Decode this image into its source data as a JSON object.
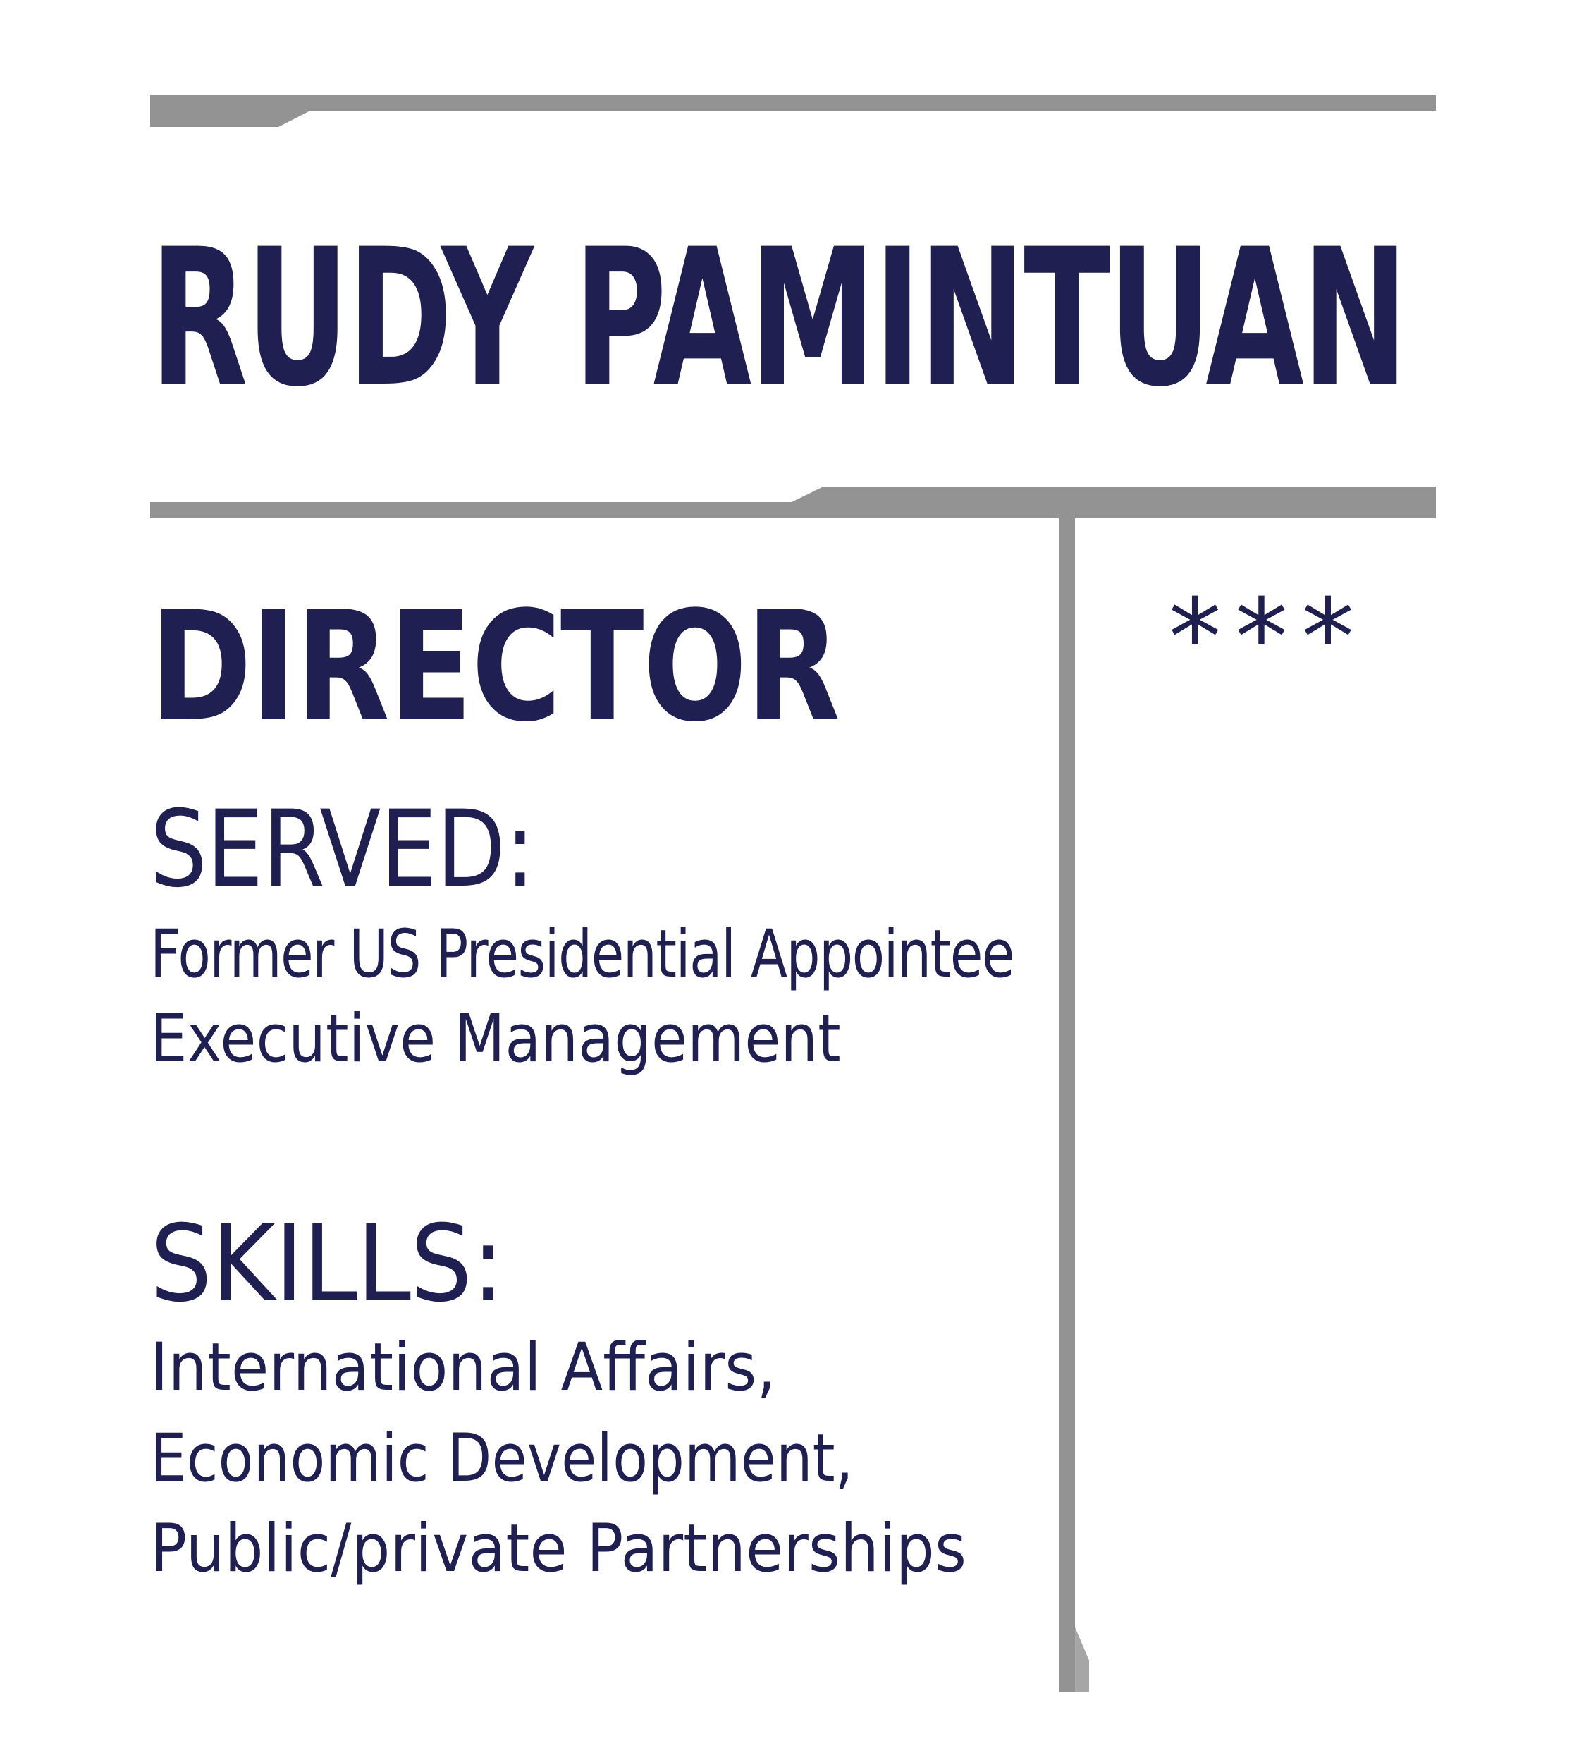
{
  "card": {
    "name": "RUDY PAMINTUAN",
    "role": "DIRECTOR",
    "stars": "***",
    "served": {
      "heading": "SERVED:",
      "lines": [
        "Former US Presidential Appointee",
        "Executive Management"
      ]
    },
    "skills": {
      "heading": "SKILLS:",
      "lines": [
        "International Affairs,",
        "Economic Development,",
        "Public/private Partnerships"
      ]
    }
  },
  "colors": {
    "text": "#1f1f52",
    "rule": "#939393",
    "background": "#ffffff"
  }
}
